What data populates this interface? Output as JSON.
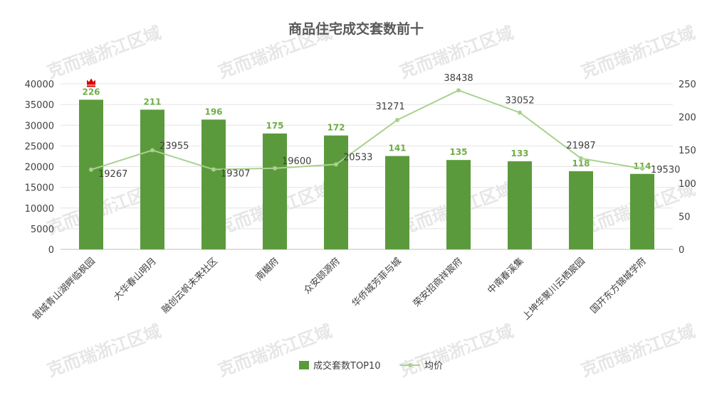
{
  "chart_data": {
    "type": "bar",
    "title": "商品住宅成交套数前十",
    "categories": [
      "银城青山湖畔临枫园",
      "大华春山明月",
      "融创云帆未来社区",
      "南樾府",
      "众安颐源府",
      "华侨城芳菲与城",
      "荣安招商祥宸府",
      "中南春溪集",
      "上坤华聚川云栖宸园",
      "国开东方锦城学府"
    ],
    "series": [
      {
        "name": "成交套数TOP10",
        "type": "bar",
        "axis": "right",
        "values": [
          226,
          211,
          196,
          175,
          172,
          141,
          135,
          133,
          118,
          114
        ]
      },
      {
        "name": "均价",
        "type": "line",
        "axis": "left",
        "values": [
          19267,
          23955,
          19307,
          19600,
          20533,
          31271,
          38438,
          33052,
          21987,
          19530
        ]
      }
    ],
    "left_axis": {
      "ylim": [
        0,
        40000
      ],
      "ticks": [
        "0",
        "5000",
        "10000",
        "15000",
        "20000",
        "25000",
        "30000",
        "35000",
        "40000"
      ]
    },
    "right_axis": {
      "ylim": [
        0,
        250
      ],
      "ticks": [
        "0",
        "50",
        "100",
        "150",
        "200",
        "250"
      ]
    },
    "grid": true,
    "legend_position": "bottom",
    "colors": {
      "bar": "#5b9a3c",
      "line": "#a9d18e",
      "bar_label": "#70ad47",
      "grid": "#e4e4e4",
      "crown": "#d90000"
    },
    "crown_icon": "crown-icon",
    "watermark": "克而瑞浙江区域"
  }
}
